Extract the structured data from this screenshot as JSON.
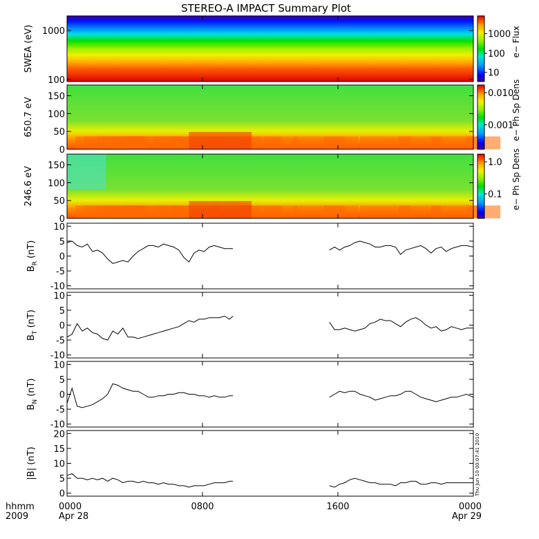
{
  "title": "STEREO-A IMPACT Summary Plot",
  "stamp": "Thu Jun 10 00:07:41 2010",
  "xaxis": {
    "corner_top": "hhmm",
    "corner_bottom": "2009",
    "ticks": [
      {
        "hour": 0,
        "top": "0000",
        "bottom": "Apr 28"
      },
      {
        "hour": 8,
        "top": "0800",
        "bottom": ""
      },
      {
        "hour": 16,
        "top": "1600",
        "bottom": ""
      },
      {
        "hour": 24,
        "top": "0000",
        "bottom": "Apr 29"
      }
    ],
    "range_hours": [
      0,
      24
    ]
  },
  "colors": {
    "trace": "#000000",
    "colormap": [
      "#3a00a0",
      "#0000ff",
      "#00a0ff",
      "#00e8c8",
      "#00e000",
      "#90f000",
      "#f0f000",
      "#ffa000",
      "#ff4000",
      "#e00000"
    ]
  },
  "chart_data": [
    {
      "type": "heatmap",
      "ylabel": "SWEA (eV)",
      "yticks": [
        "1000",
        "100"
      ],
      "ylim": [
        90,
        2000
      ],
      "yscale": "log",
      "colorbar_label": "e− Flux",
      "colorbar_ticks": [
        "1000",
        "100",
        "10"
      ],
      "colorbar_scale": "log"
    },
    {
      "type": "heatmap",
      "ylabel": "650.7 eV",
      "yticks": [
        "150",
        "100",
        "50",
        "0"
      ],
      "ylim": [
        0,
        180
      ],
      "colorbar_label": "e− Ph Sp Dens",
      "colorbar_ticks": [
        "0.010",
        "0.001"
      ],
      "colorbar_scale": "log"
    },
    {
      "type": "heatmap",
      "ylabel": "246.6 eV",
      "yticks": [
        "150",
        "100",
        "50",
        "0"
      ],
      "ylim": [
        0,
        180
      ],
      "colorbar_label": "e− Ph Sp Dens",
      "colorbar_ticks": [
        "1.0",
        "0.1"
      ],
      "colorbar_scale": "log"
    },
    {
      "type": "line",
      "ylabel_main": "B",
      "ylabel_sub": "R",
      "ylabel_unit": " (nT)",
      "yticks": [
        "10",
        "5",
        "0",
        "-5",
        "-10"
      ],
      "ylim": [
        -11,
        11
      ],
      "x": [
        0.0,
        0.3,
        0.6,
        0.9,
        1.2,
        1.5,
        1.8,
        2.1,
        2.4,
        2.7,
        3.0,
        3.3,
        3.6,
        3.9,
        4.2,
        4.5,
        4.8,
        5.1,
        5.4,
        5.7,
        6.0,
        6.3,
        6.6,
        6.9,
        7.2,
        7.5,
        7.8,
        8.1,
        8.4,
        8.7,
        9.0,
        9.3,
        9.6,
        9.8,
        null,
        15.5,
        15.8,
        16.1,
        16.4,
        16.7,
        17.0,
        17.3,
        17.6,
        17.9,
        18.2,
        18.5,
        18.8,
        19.1,
        19.4,
        19.7,
        20.0,
        20.3,
        20.6,
        20.9,
        21.2,
        21.5,
        21.8,
        22.1,
        22.4,
        22.7,
        23.0,
        23.3,
        23.6,
        24.0
      ],
      "y": [
        4.5,
        5,
        3.5,
        3,
        4,
        1.5,
        2,
        1,
        -1,
        -2.5,
        -2,
        -1.5,
        -2,
        0,
        1.5,
        2.5,
        3.5,
        3.5,
        3,
        4,
        3.5,
        3,
        2,
        -0.5,
        -2,
        1,
        2,
        1.5,
        3,
        3.5,
        3,
        2.5,
        2.5,
        2.5,
        null,
        2,
        3,
        2,
        3,
        3.5,
        4.5,
        5,
        4.5,
        4,
        3,
        3,
        3.5,
        3.5,
        3,
        0.5,
        2,
        2.5,
        3,
        3.5,
        2.5,
        1,
        2.5,
        3,
        1.5,
        2.5,
        3,
        3.5,
        3.5,
        3
      ]
    },
    {
      "type": "line",
      "ylabel_main": "B",
      "ylabel_sub": "T",
      "ylabel_unit": " (nT)",
      "yticks": [
        "10",
        "5",
        "0",
        "-5",
        "-10"
      ],
      "ylim": [
        -11,
        11
      ],
      "x": [
        0.0,
        0.3,
        0.6,
        0.9,
        1.2,
        1.5,
        1.8,
        2.1,
        2.4,
        2.7,
        3.0,
        3.3,
        3.6,
        3.9,
        4.2,
        4.5,
        4.8,
        5.1,
        5.4,
        5.7,
        6.0,
        6.3,
        6.6,
        6.9,
        7.2,
        7.5,
        7.8,
        8.1,
        8.4,
        8.7,
        9.0,
        9.3,
        9.6,
        9.8,
        null,
        15.5,
        15.8,
        16.1,
        16.4,
        16.7,
        17.0,
        17.3,
        17.6,
        17.9,
        18.2,
        18.5,
        18.8,
        19.1,
        19.4,
        19.7,
        20.0,
        20.3,
        20.6,
        20.9,
        21.2,
        21.5,
        21.8,
        22.1,
        22.4,
        22.7,
        23.0,
        23.3,
        23.6,
        24.0
      ],
      "y": [
        -4,
        -3,
        0.5,
        -2,
        -1,
        -2.5,
        -3,
        -4.5,
        -5,
        -2,
        -3,
        -1,
        -4,
        -4,
        -4.5,
        -4,
        -3.5,
        -3,
        -2.5,
        -2,
        -1.5,
        -1,
        -0.5,
        0.5,
        1.5,
        1,
        2,
        2,
        2.5,
        2.5,
        2.5,
        3,
        2,
        3,
        null,
        1,
        -1.5,
        -1.5,
        -1,
        -1.5,
        -2,
        -1.5,
        -1,
        0.5,
        1,
        2,
        1.5,
        1.5,
        0.5,
        -0.5,
        1,
        2,
        2.5,
        1.5,
        0,
        -1,
        -0.5,
        -2,
        -1.5,
        -0.5,
        -1,
        -1.5,
        -1,
        -1
      ]
    },
    {
      "type": "line",
      "ylabel_main": "B",
      "ylabel_sub": "N",
      "ylabel_unit": " (nT)",
      "yticks": [
        "10",
        "5",
        "0",
        "-5",
        "-10"
      ],
      "ylim": [
        -11,
        11
      ],
      "x": [
        0.0,
        0.3,
        0.6,
        0.9,
        1.2,
        1.5,
        1.8,
        2.1,
        2.4,
        2.7,
        3.0,
        3.3,
        3.6,
        3.9,
        4.2,
        4.5,
        4.8,
        5.1,
        5.4,
        5.7,
        6.0,
        6.3,
        6.6,
        6.9,
        7.2,
        7.5,
        7.8,
        8.1,
        8.4,
        8.7,
        9.0,
        9.3,
        9.6,
        9.8,
        null,
        15.5,
        15.8,
        16.1,
        16.4,
        16.7,
        17.0,
        17.3,
        17.6,
        17.9,
        18.2,
        18.5,
        18.8,
        19.1,
        19.4,
        19.7,
        20.0,
        20.3,
        20.6,
        20.9,
        21.2,
        21.5,
        21.8,
        22.1,
        22.4,
        22.7,
        23.0,
        23.3,
        23.6,
        24.0
      ],
      "y": [
        -3,
        2,
        -4,
        -4.5,
        -4,
        -3.5,
        -2.5,
        -1.5,
        0,
        3.5,
        3,
        2,
        1.5,
        1,
        1,
        0,
        -1,
        -1,
        -0.5,
        -0.5,
        0,
        0,
        0.5,
        0.5,
        0,
        0,
        -0.5,
        -0.5,
        -1,
        -0.5,
        -1,
        -1,
        -0.5,
        -0.5,
        null,
        -1,
        0,
        1,
        0.5,
        1,
        1,
        0,
        -0.5,
        -1,
        -2,
        -1.5,
        -1,
        -0.5,
        -0.5,
        0,
        1,
        1,
        0,
        -1,
        -1.5,
        -2,
        -2.5,
        -2,
        -1.5,
        -1,
        -1,
        -0.5,
        0,
        -1
      ]
    },
    {
      "type": "line",
      "ylabel_main": "|B|",
      "ylabel_sub": "",
      "ylabel_unit": " (nT)",
      "yticks": [
        "20",
        "15",
        "10",
        "5",
        "0"
      ],
      "ylim": [
        -1,
        21
      ],
      "x": [
        0.0,
        0.3,
        0.6,
        0.9,
        1.2,
        1.5,
        1.8,
        2.1,
        2.4,
        2.7,
        3.0,
        3.3,
        3.6,
        3.9,
        4.2,
        4.5,
        4.8,
        5.1,
        5.4,
        5.7,
        6.0,
        6.3,
        6.6,
        6.9,
        7.2,
        7.5,
        7.8,
        8.1,
        8.4,
        8.7,
        9.0,
        9.3,
        9.6,
        9.8,
        null,
        15.5,
        15.8,
        16.1,
        16.4,
        16.7,
        17.0,
        17.3,
        17.6,
        17.9,
        18.2,
        18.5,
        18.8,
        19.1,
        19.4,
        19.7,
        20.0,
        20.3,
        20.6,
        20.9,
        21.2,
        21.5,
        21.8,
        22.1,
        22.4,
        22.7,
        23.0,
        23.3,
        23.6,
        24.0
      ],
      "y": [
        6,
        6.5,
        5,
        5,
        4.5,
        5,
        4.5,
        5,
        4,
        5,
        4.5,
        3.5,
        4,
        4,
        3.5,
        4,
        3.5,
        3.5,
        3,
        3.5,
        3,
        3,
        2.5,
        2.5,
        2,
        2.5,
        2.5,
        2.5,
        3,
        3.5,
        3.5,
        3.5,
        4,
        4,
        null,
        2.5,
        2,
        3,
        3.5,
        4.5,
        5,
        4.5,
        4,
        3.5,
        3.5,
        3,
        3,
        3,
        2.5,
        3.5,
        3.5,
        4,
        4,
        3,
        3,
        3.5,
        3.5,
        3,
        3.5,
        3.5,
        3.5,
        3.5,
        3.5,
        3.5
      ]
    }
  ]
}
